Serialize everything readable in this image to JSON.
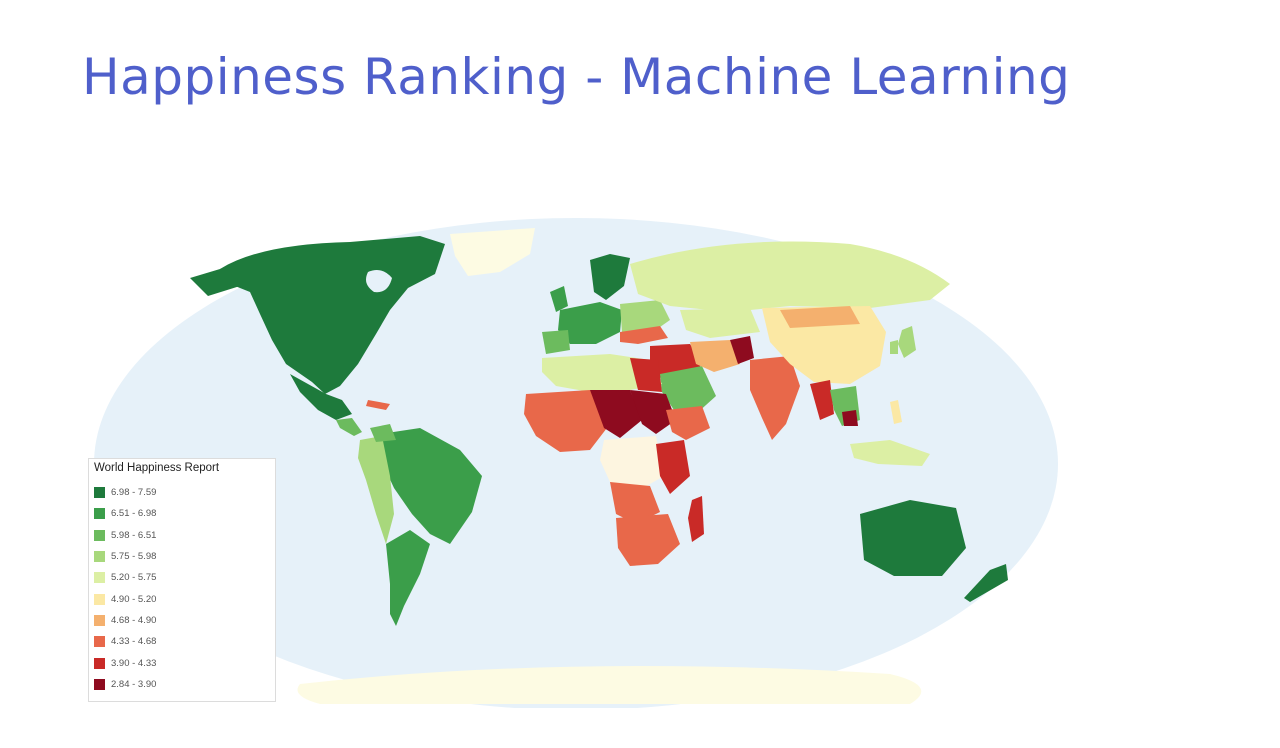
{
  "title": "Happiness Ranking - Machine Learning",
  "map": {
    "ocean_color": "#e6f1f9",
    "ice_color": "#fdfbe3",
    "legend": {
      "title": "World Happiness Report",
      "bins": [
        {
          "label": "6.98 - 7.59",
          "color": "#1e7a3c"
        },
        {
          "label": "6.51 - 6.98",
          "color": "#3b9e4a"
        },
        {
          "label": "5.98 - 6.51",
          "color": "#6cbb5e"
        },
        {
          "label": "5.75 - 5.98",
          "color": "#a8d87c"
        },
        {
          "label": "5.20 - 5.75",
          "color": "#dcefa4"
        },
        {
          "label": "4.90 - 5.20",
          "color": "#fbe8a4"
        },
        {
          "label": "4.68 - 4.90",
          "color": "#f4b06e"
        },
        {
          "label": "4.33 - 4.68",
          "color": "#e8684a"
        },
        {
          "label": "3.90 - 4.33",
          "color": "#c92a27"
        },
        {
          "label": "2.84 - 3.90",
          "color": "#8e0b1f"
        }
      ]
    }
  }
}
